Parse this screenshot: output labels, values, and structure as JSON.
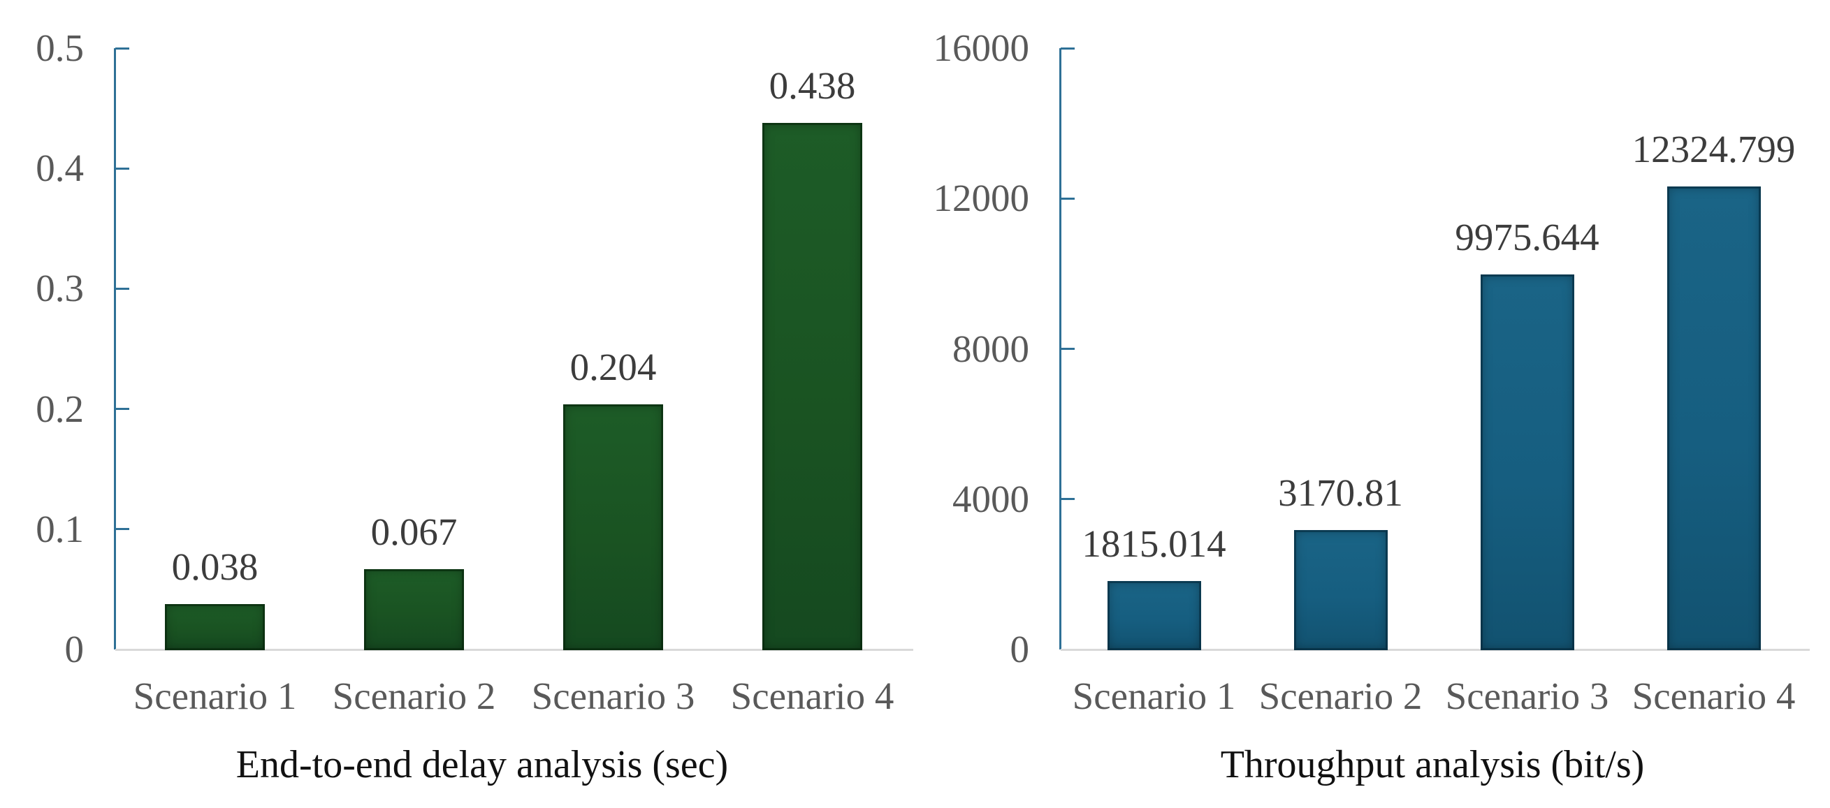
{
  "page": {
    "background": "#ffffff"
  },
  "style_colors": {
    "axis_line": "#2e7096",
    "baseline": "#d9d9d9",
    "tick_label": "#595959",
    "category_label": "#595959",
    "data_label": "#3c3c3c",
    "title": "#111111"
  },
  "chart_data": [
    {
      "type": "bar",
      "title": "End-to-end delay analysis (sec)",
      "categories": [
        "Scenario 1",
        "Scenario 2",
        "Scenario 3",
        "Scenario 4"
      ],
      "values": [
        0.038,
        0.067,
        0.204,
        0.438
      ],
      "value_labels": [
        "0.038",
        "0.067",
        "0.204",
        "0.438"
      ],
      "ylim": [
        0,
        0.5
      ],
      "ytick_values": [
        0,
        0.1,
        0.2,
        0.3,
        0.4,
        0.5
      ],
      "ytick_labels": [
        "0",
        "0.1",
        "0.2",
        "0.3",
        "0.4",
        "0.5"
      ],
      "grid": false,
      "legend": "none",
      "bar_color": "#1a5322",
      "bar_color_light": "#1d5c27",
      "bar_color_dark": "#154920",
      "bar_rim_shadow": "rgba(5,34,10,0.55)"
    },
    {
      "type": "bar",
      "title": "Throughput analysis (bit/s)",
      "categories": [
        "Scenario 1",
        "Scenario 2",
        "Scenario 3",
        "Scenario 4"
      ],
      "values": [
        1815.014,
        3170.81,
        9975.644,
        12324.799
      ],
      "value_labels": [
        "1815.014",
        "3170.81",
        "9975.644",
        "12324.799"
      ],
      "ylim": [
        0,
        16000
      ],
      "ytick_values": [
        0,
        4000,
        8000,
        12000,
        16000
      ],
      "ytick_labels": [
        "0",
        "4000",
        "8000",
        "12000",
        "16000"
      ],
      "grid": false,
      "legend": "none",
      "bar_color": "#165e80",
      "bar_color_light": "#1a6486",
      "bar_color_dark": "#125270",
      "bar_rim_shadow": "rgba(4,38,56,0.55)"
    }
  ]
}
